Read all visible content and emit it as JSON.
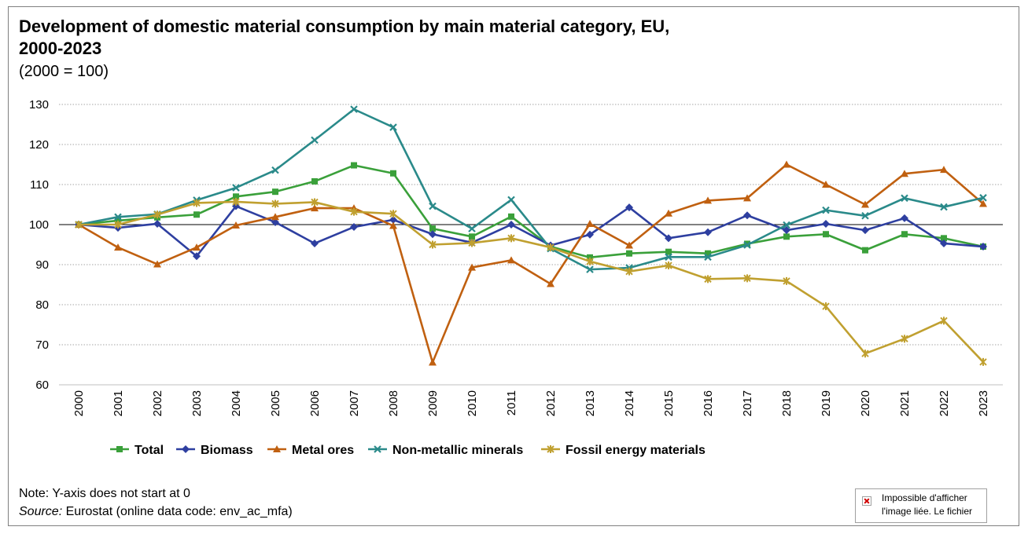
{
  "title_line1": "Development of domestic material consumption by main material category, EU,",
  "title_line2": "2000-2023",
  "subtitle": "(2000 = 100)",
  "note": "Note: Y-axis does not start at 0",
  "source_label": "Source:",
  "source_text": " Eurostat (online data code: env_ac_mfa)",
  "broken_image": {
    "line1": "Impossible d'afficher",
    "line2": "l'image liée. Le fichier"
  },
  "chart_data": {
    "type": "line",
    "title": "Development of domestic material consumption by main material category, EU, 2000-2023",
    "subtitle": "(2000 = 100)",
    "xlabel": "",
    "ylabel": "",
    "ylim": [
      60,
      130
    ],
    "yticks": [
      60,
      70,
      80,
      90,
      100,
      110,
      120,
      130
    ],
    "grid": "horizontal dotted",
    "legend_position": "bottom",
    "categories": [
      "2000",
      "2001",
      "2002",
      "2003",
      "2004",
      "2005",
      "2006",
      "2007",
      "2008",
      "2009",
      "2010",
      "2011",
      "2012",
      "2013",
      "2014",
      "2015",
      "2016",
      "2017",
      "2018",
      "2019",
      "2020",
      "2021",
      "2022",
      "2023"
    ],
    "series": [
      {
        "name": "Total",
        "color": "#3aa03a",
        "marker": "square",
        "values": [
          100,
          101,
          101.8,
          102.5,
          107,
          108.2,
          110.8,
          114.8,
          112.8,
          99,
          97,
          102,
          94.5,
          91.8,
          92.8,
          93.2,
          92.8,
          95.2,
          97,
          97.6,
          93.6,
          97.6,
          96.6,
          94.5
        ]
      },
      {
        "name": "Biomass",
        "color": "#2e3fa0",
        "marker": "diamond",
        "values": [
          100,
          99.2,
          100.2,
          92.1,
          104.6,
          100.6,
          95.3,
          99.4,
          101.2,
          97.6,
          95.5,
          100,
          94.8,
          97.5,
          104.3,
          96.6,
          98.1,
          102.3,
          98.6,
          100.2,
          98.6,
          101.6,
          95.3,
          94.5
        ]
      },
      {
        "name": "Metal ores",
        "color": "#c06010",
        "marker": "triangle",
        "values": [
          100,
          94.3,
          90.1,
          94.3,
          99.8,
          101.9,
          104.1,
          104.1,
          99.7,
          65.6,
          89.3,
          91.1,
          85.2,
          100.2,
          94.8,
          102.8,
          106,
          106.6,
          115,
          110,
          105,
          112.7,
          113.7,
          105.2
        ]
      },
      {
        "name": "Non-metallic minerals",
        "color": "#2a8a8a",
        "marker": "x",
        "values": [
          100,
          101.9,
          102.6,
          106.1,
          109.2,
          113.6,
          121.1,
          128.8,
          124.3,
          104.6,
          99,
          106.2,
          94,
          88.8,
          89.2,
          91.9,
          91.9,
          94.9,
          99.9,
          103.6,
          102.2,
          106.6,
          104.4,
          106.7
        ]
      },
      {
        "name": "Fossil energy materials",
        "color": "#c0a030",
        "marker": "star",
        "values": [
          100,
          100,
          102.5,
          105.4,
          105.7,
          105.2,
          105.6,
          103.2,
          102.7,
          95,
          95.4,
          96.6,
          94.3,
          90.8,
          88.3,
          89.8,
          86.4,
          86.6,
          85.9,
          79.6,
          67.8,
          71.5,
          76,
          65.7
        ]
      }
    ]
  }
}
